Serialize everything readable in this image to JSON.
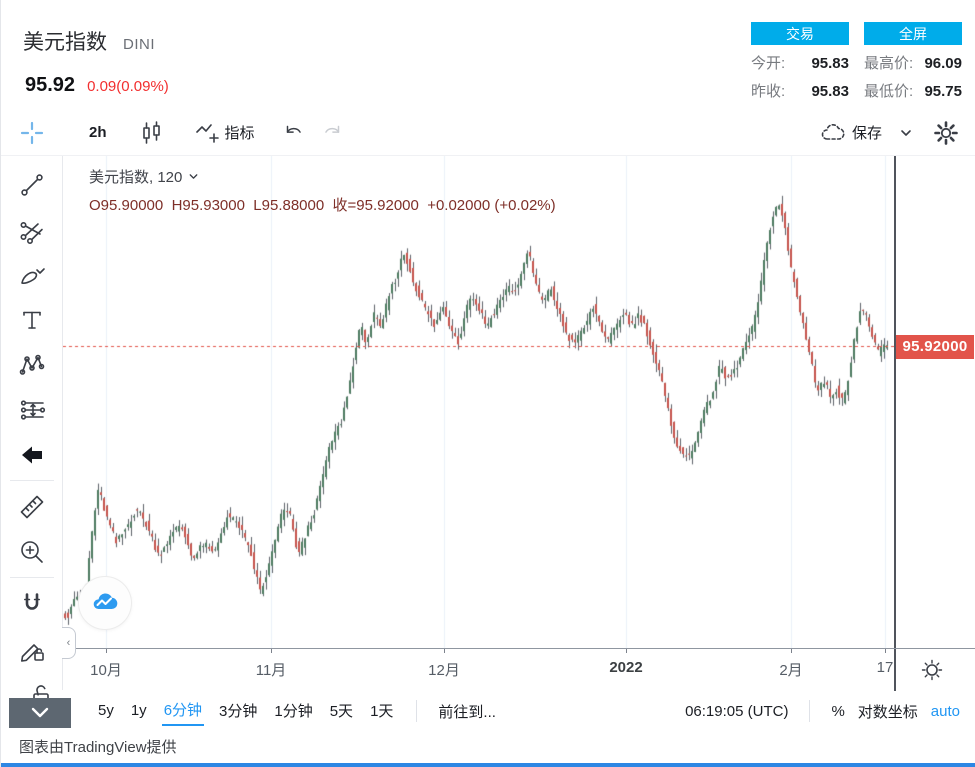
{
  "header": {
    "title": "美元指数",
    "symbol": "DINI",
    "price": "95.92",
    "change": "0.09(0.09%)",
    "buttons": {
      "trade": "交易",
      "fullscreen": "全屏"
    },
    "stats": [
      {
        "label": "今开:",
        "value": "95.83"
      },
      {
        "label": "最高价:",
        "value": "96.09"
      },
      {
        "label": "昨收:",
        "value": "95.83"
      },
      {
        "label": "最低价:",
        "value": "95.75"
      }
    ]
  },
  "toolbar": {
    "interval": "2h",
    "indicators_label": "指标",
    "save_label": "保存"
  },
  "sidebar_tools": [
    "trend-line",
    "pitchfork",
    "brush",
    "text",
    "xabcd-pattern",
    "projection",
    "arrow",
    "ruler",
    "zoom-in",
    "magnet",
    "drawing-lock",
    "lock-all"
  ],
  "legend": {
    "line1": "美元指数, 120",
    "ohlc": "O95.90000  H95.93000  L95.88000  收=95.92000  +0.02000 (+0.02%)"
  },
  "price_label": "95.92000",
  "bottom_bar": {
    "ranges": [
      "5y",
      "1y",
      "6分钟",
      "3分钟",
      "1分钟",
      "5天",
      "1天"
    ],
    "active_index": 2,
    "goto": "前往到...",
    "clock": "06:19:05 (UTC)",
    "percent": "%",
    "log": "对数坐标",
    "auto": "auto"
  },
  "attribution": "图表由TradingView提供",
  "colors": {
    "accent_cyan": "#00ACEA",
    "accent_blue": "#2196F3",
    "change_red": "#F22F2F",
    "ohlc_text": "#7E2F28",
    "price_tag_bg": "#E2544A",
    "candle_up": "#4C7A5F",
    "candle_down": "#C4534B",
    "wick": "#5C6168",
    "grid": "#EAF1F8",
    "bottom_strip": "#2D87E4"
  },
  "chart_data": {
    "type": "candlestick",
    "symbol": "美元指数",
    "interval_minutes": 120,
    "last_ohlc": {
      "open": 95.9,
      "high": 95.93,
      "low": 95.88,
      "close": 95.92,
      "change": "+0.02000",
      "change_pct": "+0.02%"
    },
    "current_price": 95.92,
    "price_range": [
      95.14,
      96.41
    ],
    "x_ticks": [
      {
        "label": "10月",
        "x": 0.052,
        "bold": false
      },
      {
        "label": "11月",
        "x": 0.25,
        "bold": false
      },
      {
        "label": "12月",
        "x": 0.459,
        "bold": false
      },
      {
        "label": "2022",
        "x": 0.678,
        "bold": true
      },
      {
        "label": "2月",
        "x": 0.876,
        "bold": false
      },
      {
        "label": "17",
        "x": 0.989,
        "bold": false
      }
    ],
    "price_path": [
      [
        0.0,
        95.24
      ],
      [
        0.008,
        95.22
      ],
      [
        0.016,
        95.27
      ],
      [
        0.028,
        95.25
      ],
      [
        0.04,
        95.48
      ],
      [
        0.046,
        95.55
      ],
      [
        0.055,
        95.48
      ],
      [
        0.067,
        95.41
      ],
      [
        0.079,
        95.45
      ],
      [
        0.091,
        95.5
      ],
      [
        0.103,
        95.46
      ],
      [
        0.118,
        95.38
      ],
      [
        0.13,
        95.42
      ],
      [
        0.144,
        95.46
      ],
      [
        0.16,
        95.37
      ],
      [
        0.172,
        95.41
      ],
      [
        0.184,
        95.38
      ],
      [
        0.2,
        95.48
      ],
      [
        0.214,
        95.46
      ],
      [
        0.229,
        95.38
      ],
      [
        0.241,
        95.28
      ],
      [
        0.253,
        95.37
      ],
      [
        0.265,
        95.48
      ],
      [
        0.274,
        95.5
      ],
      [
        0.286,
        95.38
      ],
      [
        0.298,
        95.45
      ],
      [
        0.308,
        95.51
      ],
      [
        0.318,
        95.61
      ],
      [
        0.327,
        95.68
      ],
      [
        0.337,
        95.72
      ],
      [
        0.347,
        95.81
      ],
      [
        0.353,
        95.89
      ],
      [
        0.361,
        95.97
      ],
      [
        0.368,
        95.93
      ],
      [
        0.377,
        96.0
      ],
      [
        0.385,
        95.96
      ],
      [
        0.395,
        96.05
      ],
      [
        0.404,
        96.1
      ],
      [
        0.413,
        96.16
      ],
      [
        0.421,
        96.11
      ],
      [
        0.431,
        96.05
      ],
      [
        0.44,
        96.01
      ],
      [
        0.45,
        95.97
      ],
      [
        0.46,
        96.02
      ],
      [
        0.469,
        95.97
      ],
      [
        0.479,
        95.93
      ],
      [
        0.486,
        96.0
      ],
      [
        0.493,
        96.05
      ],
      [
        0.503,
        96.02
      ],
      [
        0.513,
        95.97
      ],
      [
        0.522,
        96.01
      ],
      [
        0.532,
        96.05
      ],
      [
        0.539,
        96.07
      ],
      [
        0.549,
        96.06
      ],
      [
        0.556,
        96.13
      ],
      [
        0.563,
        96.16
      ],
      [
        0.573,
        96.07
      ],
      [
        0.581,
        96.03
      ],
      [
        0.59,
        96.07
      ],
      [
        0.597,
        96.02
      ],
      [
        0.605,
        95.97
      ],
      [
        0.614,
        95.93
      ],
      [
        0.623,
        95.94
      ],
      [
        0.633,
        95.98
      ],
      [
        0.641,
        96.02
      ],
      [
        0.65,
        95.97
      ],
      [
        0.659,
        95.93
      ],
      [
        0.669,
        95.97
      ],
      [
        0.678,
        96.01
      ],
      [
        0.686,
        95.97
      ],
      [
        0.696,
        96.0
      ],
      [
        0.705,
        95.96
      ],
      [
        0.714,
        95.89
      ],
      [
        0.722,
        95.84
      ],
      [
        0.732,
        95.74
      ],
      [
        0.741,
        95.67
      ],
      [
        0.75,
        95.63
      ],
      [
        0.758,
        95.64
      ],
      [
        0.768,
        95.71
      ],
      [
        0.777,
        95.76
      ],
      [
        0.786,
        95.81
      ],
      [
        0.794,
        95.87
      ],
      [
        0.801,
        95.83
      ],
      [
        0.81,
        95.85
      ],
      [
        0.818,
        95.89
      ],
      [
        0.825,
        95.93
      ],
      [
        0.834,
        95.97
      ],
      [
        0.842,
        96.07
      ],
      [
        0.85,
        96.18
      ],
      [
        0.857,
        96.26
      ],
      [
        0.864,
        96.29
      ],
      [
        0.871,
        96.23
      ],
      [
        0.878,
        96.13
      ],
      [
        0.886,
        96.05
      ],
      [
        0.894,
        95.97
      ],
      [
        0.903,
        95.89
      ],
      [
        0.91,
        95.8
      ],
      [
        0.918,
        95.83
      ],
      [
        0.927,
        95.79
      ],
      [
        0.934,
        95.81
      ],
      [
        0.942,
        95.77
      ],
      [
        0.948,
        95.84
      ],
      [
        0.955,
        95.94
      ],
      [
        0.963,
        96.02
      ],
      [
        0.97,
        95.99
      ],
      [
        0.978,
        95.94
      ],
      [
        0.984,
        95.9
      ],
      [
        0.992,
        95.92
      ]
    ]
  }
}
